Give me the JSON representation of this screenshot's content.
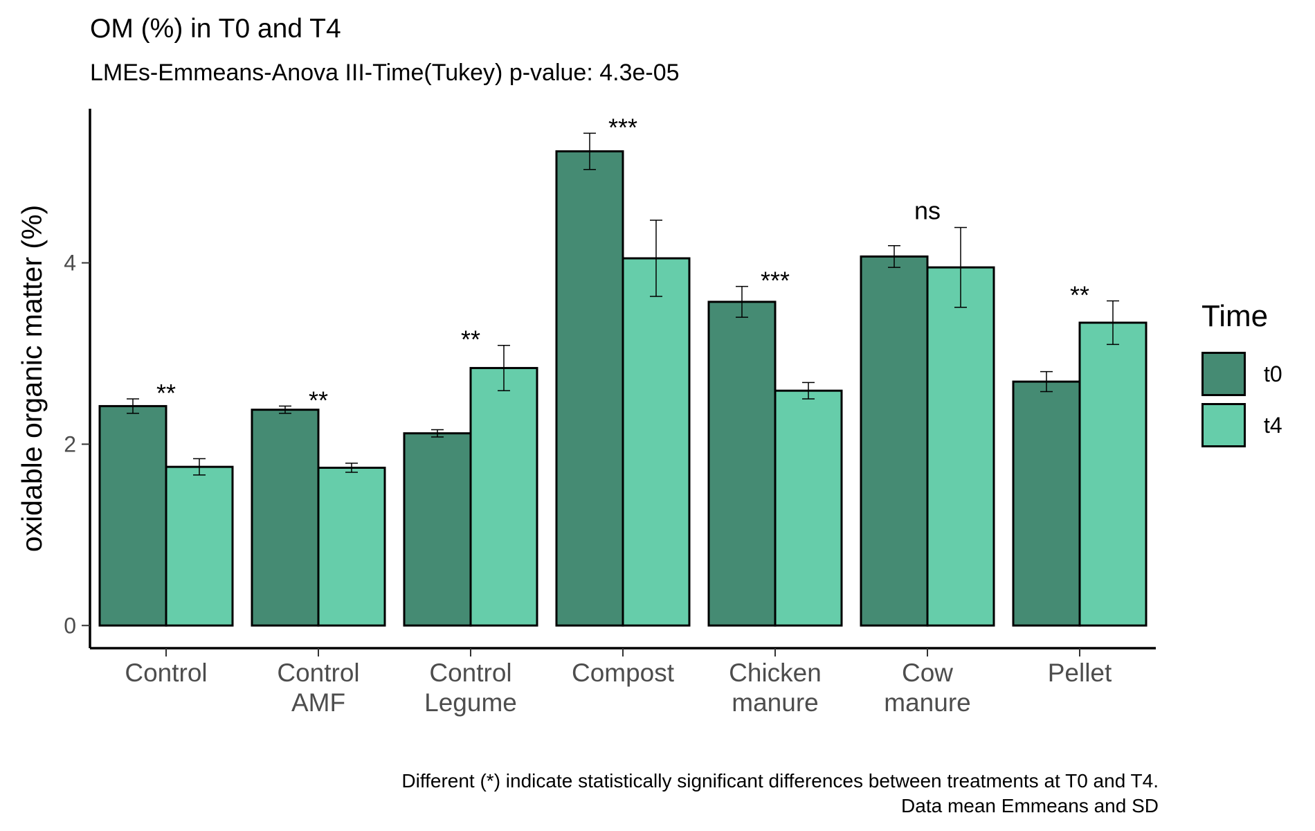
{
  "chart_data": {
    "type": "bar",
    "title": "OM (%) in T0 and T4",
    "subtitle": "LMEs-Emmeans-Anova III-Time(Tukey) p-value: 4.3e-05",
    "ylabel": "oxidable organic matter (%)",
    "xlabel": "",
    "categories": [
      [
        "Control"
      ],
      [
        "Control",
        "AMF"
      ],
      [
        "Control",
        "Legume"
      ],
      [
        "Compost"
      ],
      [
        "Chicken",
        "manure"
      ],
      [
        "Cow",
        "manure"
      ],
      [
        "Pellet"
      ]
    ],
    "series": [
      {
        "name": "t0",
        "color": "#458b73",
        "values": [
          2.42,
          2.38,
          2.12,
          5.23,
          3.57,
          4.07,
          2.69
        ],
        "errors": [
          0.08,
          0.04,
          0.04,
          0.2,
          0.17,
          0.12,
          0.11
        ]
      },
      {
        "name": "t4",
        "color": "#66cdaa",
        "values": [
          1.75,
          1.74,
          2.84,
          4.05,
          2.59,
          3.95,
          3.34
        ],
        "errors": [
          0.09,
          0.05,
          0.25,
          0.42,
          0.09,
          0.44,
          0.24
        ]
      }
    ],
    "significance": [
      "**",
      "**",
      "**",
      "***",
      "***",
      "ns",
      "**"
    ],
    "ylim": [
      -0.25,
      5.7
    ],
    "yticks": [
      0,
      2,
      4
    ],
    "grid": false,
    "legend": {
      "title": "Time",
      "position": "right"
    },
    "caption": [
      "Different (*) indicate statistically significant differences between treatments at T0 and T4.",
      "Data mean Emmeans and SD"
    ]
  }
}
